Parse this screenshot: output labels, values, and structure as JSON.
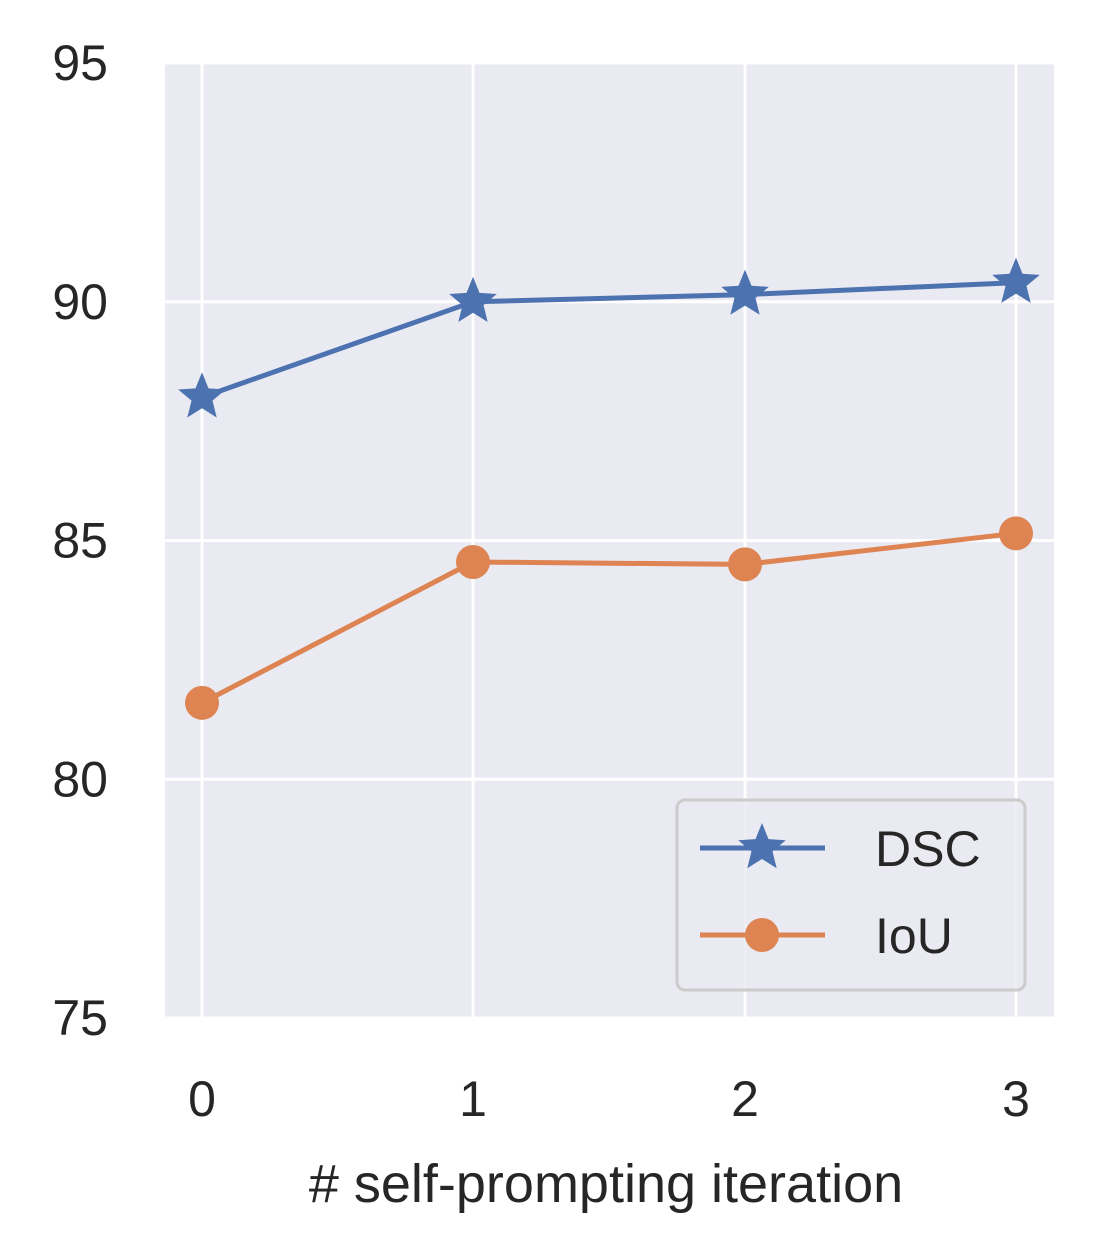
{
  "chart_data": {
    "type": "line",
    "title": "",
    "xlabel": "# self-prompting iteration",
    "ylabel": "",
    "x": [
      0,
      1,
      2,
      3
    ],
    "xticks": [
      "0",
      "1",
      "2",
      "3"
    ],
    "ylim": [
      75,
      95
    ],
    "yticks": [
      "75",
      "80",
      "85",
      "90",
      "95"
    ],
    "grid": true,
    "legend_position": "bottom-right",
    "series": [
      {
        "name": "DSC",
        "values": [
          88.0,
          90.0,
          90.15,
          90.4
        ],
        "color": "#4c72b0",
        "marker": "star"
      },
      {
        "name": "IoU",
        "values": [
          81.6,
          84.55,
          84.5,
          85.15
        ],
        "color": "#dd8452",
        "marker": "circle"
      }
    ]
  }
}
